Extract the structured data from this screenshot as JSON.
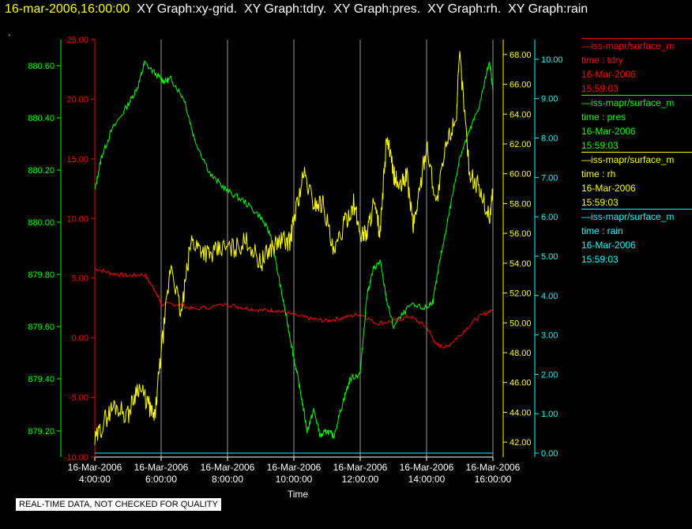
{
  "header": {
    "timestamp": "16-mar-2006,16:00:00",
    "titles": [
      "XY Graph:xy-grid.",
      "XY Graph:tdry.",
      "XY Graph:pres.",
      "XY Graph:rh.",
      "XY Graph:rain"
    ],
    "dot": "."
  },
  "notice": "REAL-TIME DATA, NOT CHECKED FOR QUALITY",
  "legend": [
    {
      "name": "—iss-mapr/surface_m",
      "field": "time : tdry",
      "date": "16-Mar-2006",
      "time": "15:59:03",
      "color": "#ff0000"
    },
    {
      "name": "—iss-mapr/surface_m",
      "field": "time : pres",
      "date": "16-Mar-2006",
      "time": "15:59:03",
      "color": "#00ff00"
    },
    {
      "name": "—iss-mapr/surface_m",
      "field": "time : rh",
      "date": "16-Mar-2006",
      "time": "15:59:03",
      "color": "#ffff00"
    },
    {
      "name": "—iss-mapr/surface_m",
      "field": "time : rain",
      "date": "16-Mar-2006",
      "time": "15:59:03",
      "color": "#00ffff"
    }
  ],
  "chart_data": {
    "type": "line",
    "xlabel": "Time",
    "x_ticks": [
      {
        "date": "16-Mar-2006",
        "time": "4:00:00",
        "h": 4
      },
      {
        "date": "16-Mar-2006",
        "time": "6:00:00",
        "h": 6
      },
      {
        "date": "16-Mar-2006",
        "time": "8:00:00",
        "h": 8
      },
      {
        "date": "16-Mar-2006",
        "time": "10:00:00",
        "h": 10
      },
      {
        "date": "16-Mar-2006",
        "time": "12:00:00",
        "h": 12
      },
      {
        "date": "16-Mar-2006",
        "time": "14:00:00",
        "h": 14
      },
      {
        "date": "16-Mar-2006",
        "time": "16:00:00",
        "h": 16
      }
    ],
    "xlim_hours": [
      4,
      16
    ],
    "grid": "vertical",
    "legend_placement": "right",
    "axes": {
      "tdry": {
        "color": "#ff0000",
        "ylim": [
          -10,
          25
        ],
        "ticks": [
          "25.00",
          "20.00",
          "15.00",
          "10.00",
          "5.00",
          "0.00",
          "-5.00",
          "-10.00"
        ]
      },
      "pres": {
        "color": "#00ff00",
        "ylim": [
          879.1,
          880.7
        ],
        "ticks": [
          "880.60",
          "880.40",
          "880.20",
          "880.00",
          "879.80",
          "879.60",
          "879.40",
          "879.20"
        ]
      },
      "rh": {
        "color": "#ffff00",
        "ylim": [
          41,
          69
        ],
        "ticks": [
          "68.00",
          "66.00",
          "64.00",
          "62.00",
          "60.00",
          "58.00",
          "56.00",
          "54.00",
          "52.00",
          "50.00",
          "48.00",
          "46.00",
          "44.00",
          "42.00"
        ]
      },
      "rain": {
        "color": "#00ffff",
        "ylim": [
          -0.1,
          10.5
        ],
        "ticks": [
          "10.00",
          "9.00",
          "8.00",
          "7.00",
          "6.00",
          "5.00",
          "4.00",
          "3.00",
          "2.00",
          "1.00",
          "0.00"
        ]
      }
    },
    "series": [
      {
        "name": "time : tdry",
        "axis": "tdry",
        "x": [
          4.0,
          4.5,
          5.0,
          5.5,
          5.9,
          6.0,
          6.5,
          7.0,
          8.0,
          8.5,
          9.0,
          9.5,
          10.0,
          10.5,
          11.0,
          11.5,
          12.0,
          12.5,
          13.0,
          13.5,
          14.0,
          14.3,
          14.6,
          15.0,
          15.5,
          16.0
        ],
        "values": [
          5.8,
          5.4,
          5.2,
          5.3,
          3.6,
          2.8,
          2.8,
          2.4,
          2.8,
          2.5,
          2.3,
          2.3,
          1.9,
          1.6,
          1.4,
          1.7,
          2.0,
          1.2,
          1.4,
          1.8,
          0.9,
          -0.6,
          -0.8,
          0.2,
          1.6,
          2.4
        ]
      },
      {
        "name": "time : pres",
        "axis": "pres",
        "x": [
          4.0,
          4.2,
          4.5,
          5.0,
          5.3,
          5.5,
          5.9,
          6.1,
          6.3,
          6.7,
          7.0,
          7.5,
          8.0,
          8.5,
          9.0,
          9.3,
          9.6,
          9.8,
          10.0,
          10.2,
          10.4,
          10.6,
          10.8,
          11.0,
          11.2,
          11.5,
          11.7,
          12.0,
          12.2,
          12.4,
          12.6,
          12.8,
          13.0,
          13.5,
          14.0,
          14.2,
          14.4,
          14.7,
          15.0,
          15.3,
          15.6,
          15.9,
          16.0
        ],
        "values": [
          880.12,
          880.25,
          880.35,
          880.45,
          880.52,
          880.61,
          880.56,
          880.54,
          880.55,
          880.47,
          880.32,
          880.18,
          880.12,
          880.08,
          880.02,
          879.95,
          879.75,
          879.62,
          879.48,
          879.35,
          879.2,
          879.28,
          879.18,
          879.2,
          879.18,
          879.32,
          879.4,
          879.42,
          879.72,
          879.82,
          879.85,
          879.7,
          879.6,
          879.68,
          879.67,
          879.7,
          879.85,
          880.05,
          880.25,
          880.35,
          880.45,
          880.62,
          880.5
        ]
      },
      {
        "name": "time : rh",
        "axis": "rh",
        "x": [
          4.0,
          4.3,
          4.6,
          5.0,
          5.3,
          5.6,
          5.8,
          6.0,
          6.3,
          6.6,
          6.9,
          7.2,
          7.5,
          7.8,
          8.2,
          8.6,
          9.0,
          9.3,
          9.6,
          9.9,
          10.0,
          10.3,
          10.6,
          10.9,
          11.2,
          11.5,
          11.8,
          12.0,
          12.2,
          12.4,
          12.6,
          12.8,
          13.0,
          13.2,
          13.4,
          13.6,
          13.8,
          14.0,
          14.3,
          14.6,
          14.9,
          15.0,
          15.3,
          15.6,
          15.9,
          16.0
        ],
        "values": [
          42.0,
          43.5,
          44.5,
          43.8,
          45.8,
          44.6,
          43.5,
          48.0,
          54.0,
          50.5,
          55.5,
          55.0,
          54.5,
          55.0,
          55.0,
          55.5,
          54.0,
          55.0,
          55.5,
          55.5,
          57.0,
          60.0,
          58.0,
          58.0,
          54.5,
          56.5,
          58.0,
          56.0,
          56.0,
          58.0,
          56.0,
          62.5,
          60.0,
          59.0,
          60.0,
          56.5,
          59.0,
          62.0,
          58.0,
          62.0,
          64.0,
          68.0,
          60.0,
          59.0,
          57.0,
          59.0
        ]
      },
      {
        "name": "time : rain",
        "axis": "rain",
        "x": [
          4.0,
          16.0
        ],
        "values": [
          0.0,
          0.0
        ]
      }
    ]
  }
}
